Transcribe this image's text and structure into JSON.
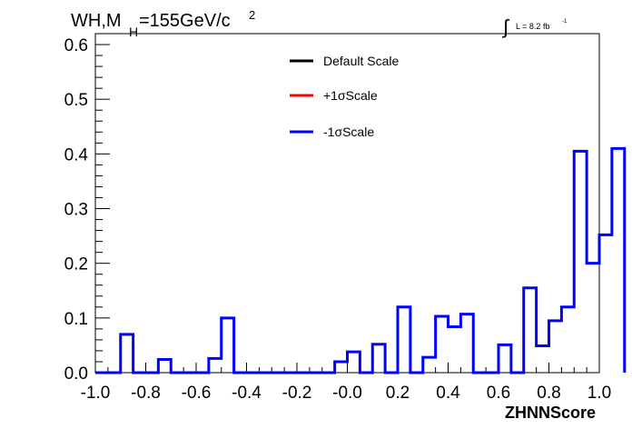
{
  "chart_data": {
    "type": "step",
    "title": {
      "prefix": "WH,M",
      "subscript": "H",
      "main": "=155GeV/c",
      "superscript": "2"
    },
    "lumi": {
      "symbol": "∫",
      "text": "L = 8.2 fb",
      "superscript": "-1"
    },
    "xlabel": "ZHNNScore",
    "ylabel": "",
    "xlim": [
      -1.0,
      1.0
    ],
    "ylim": [
      0,
      0.62
    ],
    "xticks": [
      "-1.0",
      "-0.8",
      "-0.6",
      "-0.4",
      "-0.2",
      "-0.0",
      "0.2",
      "0.4",
      "0.6",
      "0.8",
      "1.0"
    ],
    "yticks": [
      "0.0",
      "0.1",
      "0.2",
      "0.3",
      "0.4",
      "0.5",
      "0.6"
    ],
    "bin_edges_start": -1.0,
    "bin_width": 0.05,
    "legend": {
      "placement": "top-center",
      "entries": [
        {
          "label": "Default Scale",
          "color": "#000000"
        },
        {
          "label": "+1σScale",
          "color": "#ff0000"
        },
        {
          "label": "-1σScale",
          "color": "#0000ff"
        }
      ]
    },
    "series": [
      {
        "name": "-1σScale",
        "color": "#0000ff",
        "values": [
          0.0,
          0.0,
          0.07,
          0.0,
          0.0,
          0.024,
          0.0,
          0.0,
          0.0,
          0.026,
          0.1,
          0.0,
          0.0,
          0.0,
          0.0,
          0.0,
          0.0,
          0.0,
          0.0,
          0.02,
          0.038,
          0.0,
          0.052,
          0.0,
          0.12,
          0.0,
          0.028,
          0.103,
          0.084,
          0.107,
          0.0,
          0.0,
          0.051,
          0.0,
          0.155,
          0.049,
          0.095,
          0.12,
          0.405,
          0.2,
          0.252,
          0.41
        ]
      }
    ]
  }
}
